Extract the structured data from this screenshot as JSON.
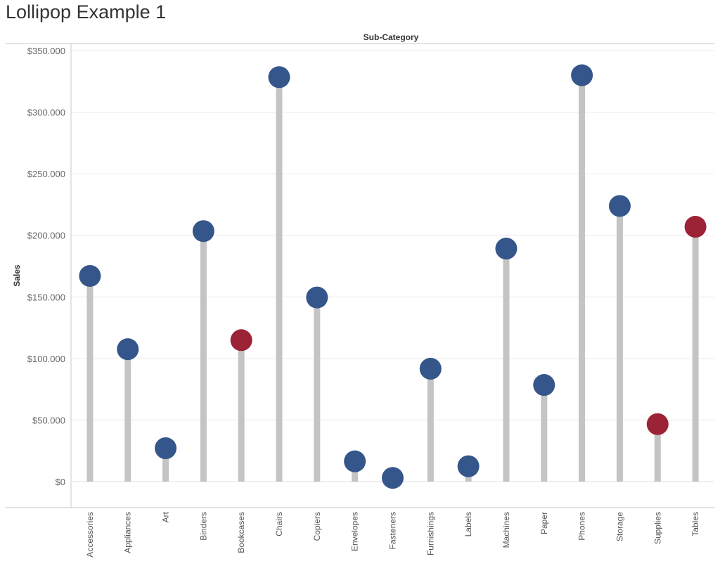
{
  "page": {
    "title": "Lollipop Example 1"
  },
  "chart_data": {
    "type": "lollipop",
    "title": "Lollipop Example 1",
    "xlabel": "Sub-Category",
    "ylabel": "Sales",
    "categories": [
      "Accessories",
      "Appliances",
      "Art",
      "Binders",
      "Bookcases",
      "Chairs",
      "Copiers",
      "Envelopes",
      "Fasteners",
      "Furnishings",
      "Labels",
      "Machines",
      "Paper",
      "Phones",
      "Storage",
      "Supplies",
      "Tables"
    ],
    "values": [
      167026,
      107532,
      27119,
      203413,
      114880,
      328449,
      149528,
      16476,
      3024,
      91705,
      12486,
      189239,
      78479,
      330007,
      223844,
      46674,
      206966
    ],
    "highlighted": [
      "Bookcases",
      "Supplies",
      "Tables"
    ],
    "ylim": [
      0,
      350000
    ],
    "yticks": [
      0,
      50000,
      100000,
      150000,
      200000,
      250000,
      300000,
      350000
    ],
    "ytick_labels": [
      "$0",
      "$50.000",
      "$100.000",
      "$150.000",
      "$200.000",
      "$250.000",
      "$300.000",
      "$350.000"
    ],
    "grid": true,
    "colors": {
      "dot_default": "#34568b",
      "dot_highlight": "#9b2335",
      "stem": "#c4c4c4",
      "grid": "#ececec",
      "axis": "#c8c8c8"
    }
  }
}
